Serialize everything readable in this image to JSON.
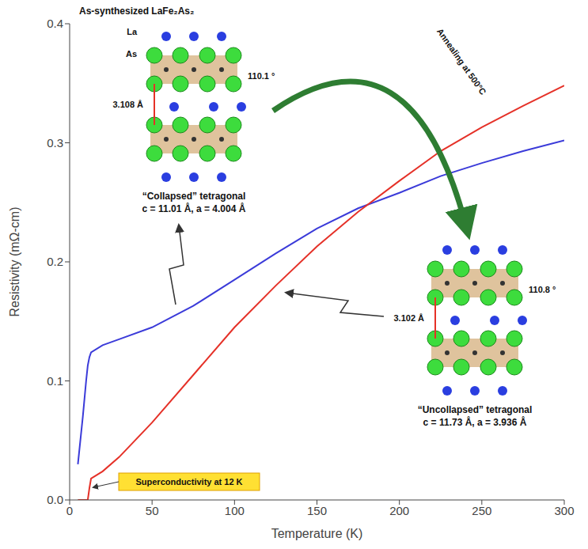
{
  "chart_data": {
    "type": "line",
    "title": "As-synthesized LaFe₂As₂",
    "x_label": "Temperature (K)",
    "y_label": "Resistivity (mΩ-cm)",
    "x": [
      5,
      8,
      10,
      11,
      12,
      13,
      20,
      30,
      50,
      75,
      100,
      125,
      150,
      175,
      200,
      225,
      250,
      275,
      300
    ],
    "series": [
      {
        "color": "#3b3bd9",
        "values": [
          0.03,
          0.07,
          0.1,
          0.113,
          0.12,
          0.124,
          0.13,
          0.135,
          0.145,
          0.163,
          0.185,
          0.207,
          0.228,
          0.245,
          0.258,
          0.272,
          0.283,
          0.293,
          0.302
        ]
      },
      {
        "color": "#e53128",
        "values": [
          0,
          0,
          0,
          0,
          0.01,
          0.018,
          0.024,
          0.036,
          0.065,
          0.105,
          0.145,
          0.18,
          0.213,
          0.242,
          0.268,
          0.293,
          0.313,
          0.331,
          0.348
        ]
      }
    ],
    "xlim": [
      0,
      300
    ],
    "xticks": [
      0,
      50,
      100,
      150,
      200,
      250,
      300
    ],
    "ylim": [
      0,
      0.4
    ],
    "yticks": [
      {
        "value": 0,
        "label": "0.0"
      },
      {
        "value": 0.1,
        "label": "0.1"
      },
      {
        "value": 0.2,
        "label": "0.2"
      },
      {
        "value": 0.3,
        "label": "0.3"
      },
      {
        "value": 0.4,
        "label": "0.4"
      }
    ],
    "grid": false,
    "insets": [
      {
        "atom_labels": [
          "La",
          "As"
        ],
        "bond_length": "3.108 Å",
        "bond_angle": "110.1 °",
        "name": "“Collapsed” tetragonal",
        "lattice": "c = 11.01 Å, a = 4.004 Å"
      },
      {
        "atom_labels": [],
        "bond_length": "3.102 Å",
        "bond_angle": "110.8 °",
        "name": "“Uncollapsed” tetragonal",
        "lattice": "c = 11.73 Å, a = 3.936 Å"
      }
    ],
    "arrow_label": "Annealing at 500°C",
    "highlight": "Superconductivity at 12 K"
  }
}
